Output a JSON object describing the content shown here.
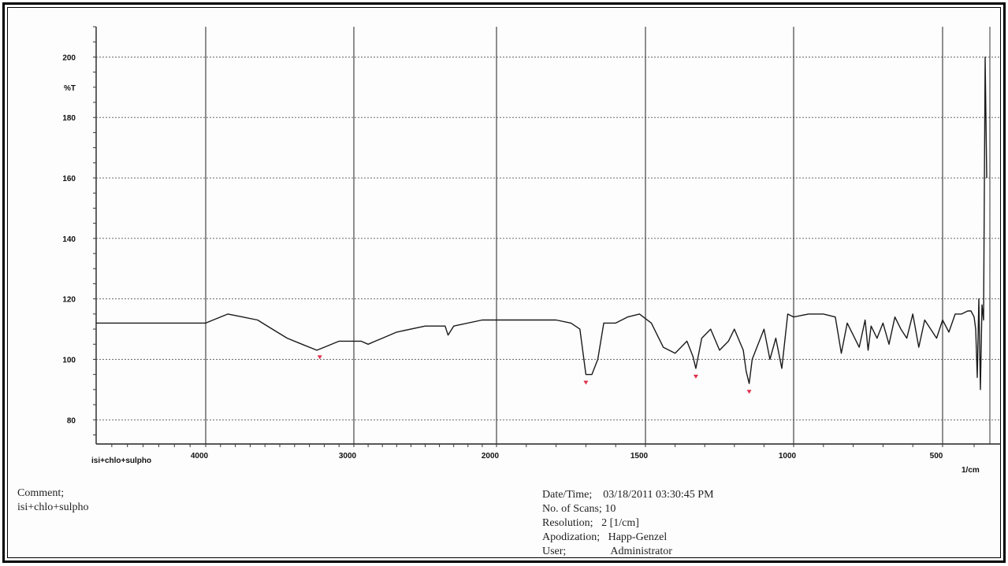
{
  "chart_data": {
    "type": "line",
    "ylabel": "%T",
    "xlabel": "1/cm",
    "ylim": [
      72,
      210
    ],
    "xlim": [
      4700,
      350
    ],
    "yticks": [
      80,
      100,
      120,
      140,
      160,
      180,
      200
    ],
    "xticks": [
      4000,
      3000,
      2000,
      1500,
      1000,
      500
    ],
    "grid": true,
    "series": [
      {
        "name": "isi+chlo+sulpho",
        "x": [
          4700,
          4100,
          4000,
          3950,
          3850,
          3750,
          3650,
          3550,
          3450,
          3350,
          3250,
          3200,
          3100,
          3000,
          2950,
          2900,
          2850,
          2800,
          2700,
          2500,
          2360,
          2340,
          2300,
          2100,
          2000,
          1900,
          1800,
          1750,
          1720,
          1700,
          1680,
          1660,
          1640,
          1600,
          1560,
          1520,
          1480,
          1460,
          1440,
          1400,
          1380,
          1360,
          1340,
          1330,
          1310,
          1280,
          1250,
          1220,
          1200,
          1170,
          1160,
          1150,
          1140,
          1100,
          1080,
          1060,
          1040,
          1020,
          1000,
          950,
          900,
          860,
          840,
          820,
          800,
          780,
          760,
          750,
          740,
          720,
          700,
          680,
          660,
          640,
          620,
          600,
          580,
          560,
          540,
          520,
          500,
          480,
          460,
          440,
          420,
          410,
          400,
          395,
          390,
          385,
          380,
          375,
          370,
          365,
          360
        ],
        "y": [
          112,
          112,
          112,
          113,
          115,
          114,
          113,
          110,
          107,
          105,
          103,
          104,
          106,
          106,
          106,
          105,
          106,
          107,
          109,
          111,
          111,
          108,
          111,
          113,
          113,
          113,
          113,
          112,
          110,
          95,
          95,
          100,
          112,
          112,
          114,
          115,
          112,
          108,
          104,
          102,
          104,
          106,
          101,
          97,
          107,
          110,
          103,
          106,
          110,
          103,
          96,
          92,
          100,
          110,
          100,
          107,
          97,
          115,
          114,
          115,
          115,
          114,
          102,
          112,
          108,
          104,
          113,
          103,
          111,
          107,
          112,
          105,
          114,
          110,
          107,
          115,
          104,
          113,
          110,
          107,
          113,
          109,
          115,
          115,
          116,
          116,
          114,
          110,
          94,
          120,
          90,
          118,
          113,
          200,
          160
        ]
      }
    ],
    "peak_marker_x": [
      3230,
      1700,
      1330,
      1150
    ]
  },
  "sample_label": "isi+chlo+sulpho",
  "comment": {
    "label": "Comment;",
    "value": "isi+chlo+sulpho"
  },
  "info": {
    "datetime_label": "Date/Time;",
    "datetime_value": "03/18/2011 03:30:45 PM",
    "scans_label": "No. of Scans;",
    "scans_value": "10",
    "resolution_label": "Resolution;",
    "resolution_value": "2 [1/cm]",
    "apodization_label": "Apodization;",
    "apodization_value": "Happ-Genzel",
    "user_label": "User;",
    "user_value": "Administrator"
  },
  "colors": {
    "trace": "#1a1a1a",
    "grid": "#333333",
    "peak_marker": "#e0304a"
  }
}
